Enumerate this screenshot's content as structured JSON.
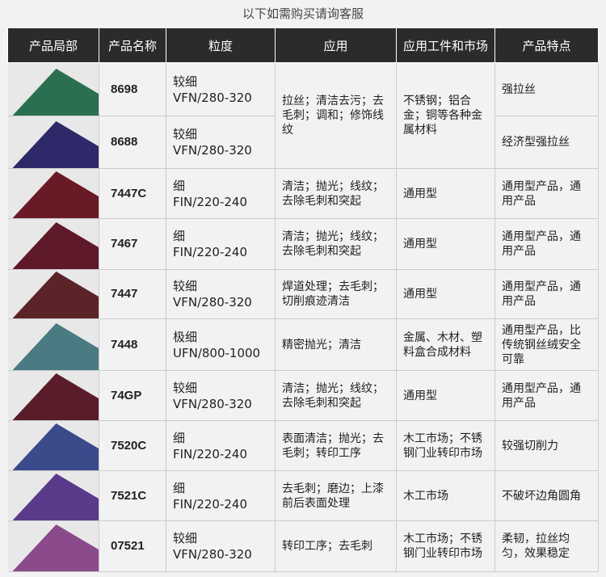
{
  "title": "以下如需购买请询客服",
  "headers": [
    "产品局部",
    "产品名称",
    "粒度",
    "应用",
    "应用工件和市场",
    "产品特点"
  ],
  "rows": [
    {
      "color": "#2a7050",
      "name": "8698",
      "grit1": "较细",
      "grit2": "VFN/280-320",
      "app": "拉丝；清洁去污；去毛刺；调和；修饰线纹",
      "market": "不锈钢；铝合金；铜等各种金属材料",
      "feature": "强拉丝"
    },
    {
      "color": "#2e2a6a",
      "name": "8688",
      "grit1": "较细",
      "grit2": "VFN/280-320",
      "feature": "经济型强拉丝"
    },
    {
      "color": "#6a1a24",
      "name": "7447C",
      "grit1": "细",
      "grit2": "FIN/220-240",
      "app": "清洁；抛光；线纹；去除毛刺和突起",
      "market": "通用型",
      "feature": "通用型产品，通用产品"
    },
    {
      "color": "#5e1a28",
      "name": "7467",
      "grit1": "细",
      "grit2": "FIN/220-240",
      "app": "清洁；抛光；线纹；去除毛刺和突起",
      "market": "通用型",
      "feature": "通用型产品，通用产品"
    },
    {
      "color": "#5a2428",
      "name": "7447",
      "grit1": "较细",
      "grit2": "VFN/280-320",
      "app": "焊道处理；去毛刺；切削痕迹清洁",
      "market": "通用型",
      "feature": "通用型产品，通用产品"
    },
    {
      "color": "#4a7a82",
      "name": "7448",
      "grit1": "极细",
      "grit2": "UFN/800-1000",
      "app": "精密抛光；清洁",
      "market": "金属、木材、塑料盒合成材料",
      "feature": "通用型产品，比传统钢丝绒安全可靠"
    },
    {
      "color": "#5a1c28",
      "name": "74GP",
      "grit1": "较细",
      "grit2": "VFN/280-320",
      "app": "清洁；抛光；线纹；去除毛刺和突起",
      "market": "通用型",
      "feature": "通用型产品，通用产品"
    },
    {
      "color": "#3a4a8a",
      "name": "7520C",
      "grit1": "细",
      "grit2": "FIN/220-240",
      "app": "表面清洁；抛光；去毛刺；转印工序",
      "market": "木工市场；不锈钢门业转印市场",
      "feature": "较强切削力"
    },
    {
      "color": "#5a3a8a",
      "name": "7521C",
      "grit1": "细",
      "grit2": "FIN/220-240",
      "app": "去毛刺；磨边；上漆前后表面处理",
      "market": "木工市场",
      "feature": "不破坏边角圆角"
    },
    {
      "color": "#8a4a8c",
      "name": "07521",
      "grit1": "较细",
      "grit2": "VFN/280-320",
      "app": "转印工序；去毛刺",
      "market": "木工市场；不锈钢门业转印市场",
      "feature": "柔韧，拉丝均匀，效果稳定"
    }
  ]
}
